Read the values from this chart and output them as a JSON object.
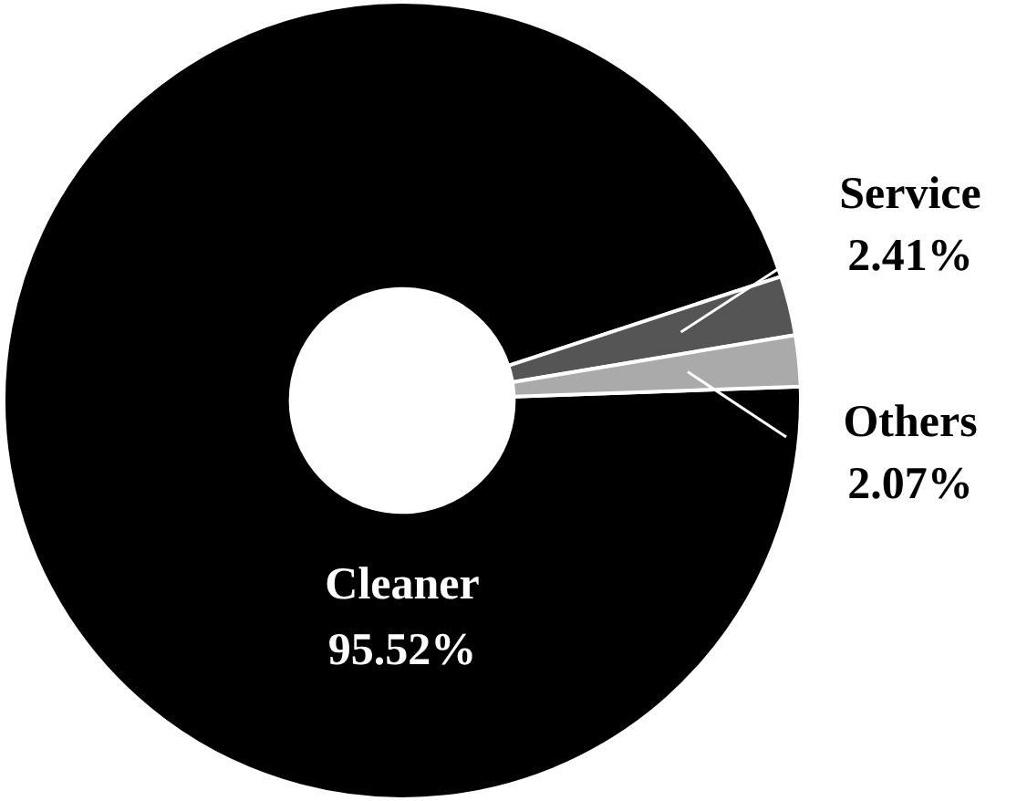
{
  "chart_data": {
    "type": "donut",
    "categories": [
      "Cleaner",
      "Service",
      "Others"
    ],
    "values": [
      95.52,
      2.41,
      2.07
    ],
    "colors": [
      "#000000",
      "#555555",
      "#aaaaaa"
    ],
    "value_labels": [
      "95.52%",
      "2.41%",
      "2.07%"
    ]
  }
}
